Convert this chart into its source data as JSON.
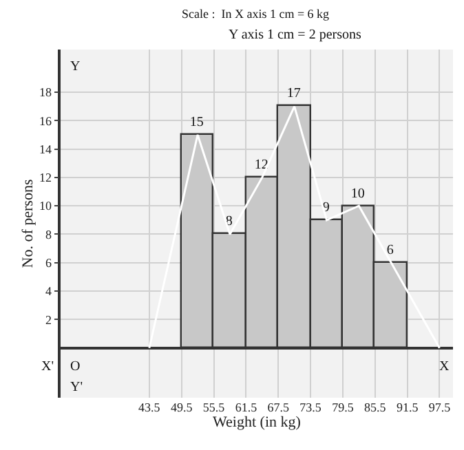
{
  "chart_data": {
    "type": "histogram",
    "xlabel": "Weight (in kg)",
    "ylabel": "No. of persons",
    "bins": [
      49.5,
      55.5,
      61.5,
      67.5,
      73.5,
      79.5,
      85.5,
      91.5
    ],
    "values": [
      15,
      8,
      12,
      17,
      9,
      10,
      6
    ],
    "color": "#c8c8c8",
    "value_labels": [
      "15",
      "8",
      "12",
      "17",
      "9",
      "10",
      "6"
    ],
    "series": [
      {
        "type": "line",
        "color": "#ffffff",
        "x": [
          43.5,
          52.5,
          58.5,
          64.5,
          70.5,
          76.5,
          82.5,
          88.5,
          97.5
        ],
        "values": [
          0,
          15,
          8,
          12,
          17,
          9,
          10,
          6,
          0
        ]
      }
    ],
    "xlim": [
      27,
      100
    ],
    "ylim": [
      -3.5,
      21
    ],
    "xticks": [
      43.5,
      49.5,
      55.5,
      61.5,
      67.5,
      73.5,
      79.5,
      85.5,
      91.5,
      97.5
    ],
    "yticks": [
      2,
      4,
      6,
      8,
      10,
      12,
      14,
      16,
      18
    ],
    "grid": true,
    "annotations": [
      "Scale :  In X axis 1 cm = 6 kg",
      "Y axis 1 cm = 2 persons",
      "O",
      "X'",
      "X",
      "Y",
      "Y'"
    ]
  }
}
